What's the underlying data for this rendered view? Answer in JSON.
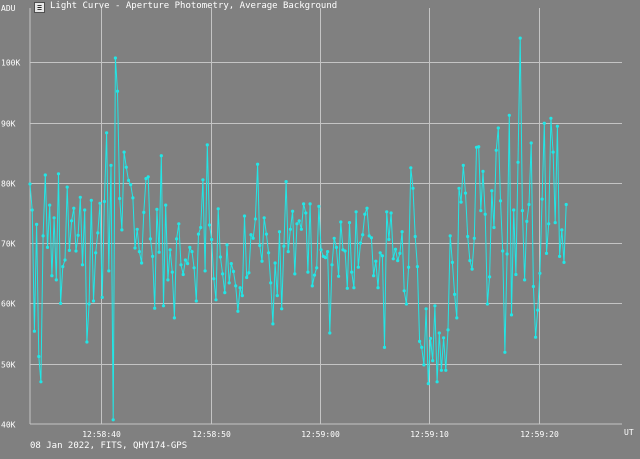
{
  "window": {
    "title": "Light Curve - Aperture Photometry, Average Background",
    "icon": "chart-app-icon",
    "icon_glyph": "≡"
  },
  "footer": {
    "text": "08 Jan 2022, FITS, QHY174-GPS"
  },
  "colors": {
    "background": "#808080",
    "grid": "#c4c4c4",
    "series": "#22e6e6",
    "text": "#ffffff"
  },
  "chart_data": {
    "type": "line",
    "title": "",
    "xlabel": "UT",
    "ylabel": "ADU",
    "ylim": [
      40000,
      109000
    ],
    "xlim": [
      "12:58:33.5",
      "12:59:27.6"
    ],
    "grid": true,
    "legend": "none",
    "yticks": [
      {
        "value": 40000,
        "label": "40K"
      },
      {
        "value": 50000,
        "label": "50K"
      },
      {
        "value": 60000,
        "label": "60K"
      },
      {
        "value": 70000,
        "label": "70K"
      },
      {
        "value": 80000,
        "label": "80K"
      },
      {
        "value": 90000,
        "label": "90K"
      },
      {
        "value": 100000,
        "label": "100K"
      }
    ],
    "xticks": [
      {
        "value": "12:58:40",
        "label": "12:58:40"
      },
      {
        "value": "12:58:50",
        "label": "12:58:50"
      },
      {
        "value": "12:59:00",
        "label": "12:59:00"
      },
      {
        "value": "12:59:10",
        "label": "12:59:10"
      },
      {
        "value": "12:59:20",
        "label": "12:59:20"
      }
    ],
    "series": [
      {
        "x_start": "12:58:33.5",
        "x_step_seconds": 0.2,
        "values": [
          79800,
          75500,
          55400,
          73100,
          51200,
          47000,
          71200,
          81300,
          69300,
          76300,
          64600,
          74200,
          63900,
          81500,
          60000,
          66100,
          67200,
          79300,
          68800,
          73700,
          75800,
          68700,
          71300,
          77600,
          66400,
          75500,
          53600,
          59900,
          77100,
          60400,
          68400,
          71700,
          76600,
          61000,
          76900,
          88300,
          65400,
          82900,
          40700,
          100700,
          95200,
          77400,
          72200,
          85100,
          82600,
          80400,
          79700,
          77500,
          69200,
          72300,
          68600,
          66700,
          75100,
          80700,
          81000,
          70700,
          67800,
          59200,
          75600,
          68500,
          84500,
          59600,
          76300,
          63900,
          68900,
          65200,
          57600,
          70700,
          73200,
          66400,
          64800,
          67200,
          66600,
          69300,
          68600,
          65900,
          60400,
          71500,
          72600,
          80500,
          65400,
          86300,
          73000,
          70600,
          64100,
          60600,
          75700,
          67700,
          64900,
          61800,
          69700,
          63400,
          66600,
          65300,
          62900,
          58700,
          62600,
          61300,
          74500,
          64300,
          65100,
          71400,
          70800,
          74000,
          83100,
          69600,
          67000,
          74200,
          71500,
          68400,
          63400,
          56600,
          66700,
          61300,
          71900,
          59100,
          69500,
          80200,
          68600,
          72300,
          75300,
          64900,
          73200,
          73700,
          72300,
          76500,
          75000,
          65200,
          76500,
          62900,
          64700,
          65900,
          76100,
          68900,
          67800,
          67600,
          68600,
          55100,
          66400,
          70800,
          69300,
          64500,
          73500,
          68900,
          68700,
          62500,
          73400,
          65200,
          62600,
          75200,
          66000,
          70000,
          71400,
          74800,
          75800,
          71200,
          70900,
          64600,
          67000,
          62600,
          68400,
          67900,
          52700,
          75200,
          70600,
          75000,
          67400,
          69000,
          67100,
          68300,
          71900,
          62100,
          59900,
          66000,
          82500,
          79100,
          71100,
          66100,
          53700,
          52700,
          49800,
          59100,
          46700,
          54200,
          50500,
          59600,
          47000,
          55100,
          48900,
          54300,
          48900,
          55600,
          71200,
          66800,
          61500,
          57600,
          79100,
          76800,
          82900,
          78300,
          71100,
          67100,
          65700,
          70800,
          85900,
          86000,
          75400,
          81900,
          74800,
          59900,
          64400,
          78700,
          72600,
          85400,
          89100,
          77000,
          68700,
          51900,
          68200,
          91200,
          58100,
          75500,
          64800,
          83400,
          104000,
          75400,
          63900,
          73600,
          76400,
          86600,
          62800,
          54400,
          58900,
          65000,
          77300,
          89900,
          68300,
          73200,
          90700,
          85100,
          73400,
          89400,
          67800,
          72200,
          66800,
          76400
        ]
      }
    ]
  }
}
